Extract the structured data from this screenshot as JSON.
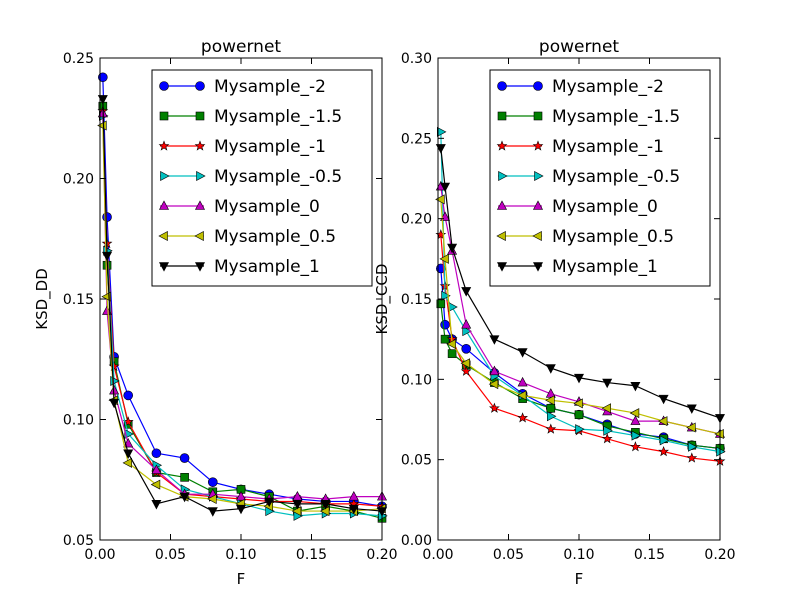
{
  "chart_data": [
    {
      "type": "line",
      "title": "powernet",
      "xlabel": "F",
      "ylabel": "KSD_DD",
      "xlim": [
        0.0,
        0.2
      ],
      "ylim": [
        0.05,
        0.25
      ],
      "xticks": [
        "0.00",
        "0.05",
        "0.10",
        "0.15",
        "0.20"
      ],
      "yticks": [
        "0.05",
        "0.10",
        "0.15",
        "0.20",
        "0.25"
      ],
      "grid": false,
      "legend_position": "top-right",
      "series": [
        {
          "name": "Mysample_-2",
          "color": "#0000ff",
          "marker": "circle",
          "x": [
            0.002,
            0.005,
            0.01,
            0.02,
            0.04,
            0.06,
            0.08,
            0.1,
            0.12,
            0.14,
            0.16,
            0.18,
            0.2
          ],
          "y": [
            0.242,
            0.184,
            0.126,
            0.11,
            0.086,
            0.084,
            0.074,
            0.071,
            0.069,
            0.067,
            0.066,
            0.066,
            0.064
          ]
        },
        {
          "name": "Mysample_-1.5",
          "color": "#008000",
          "marker": "square",
          "x": [
            0.002,
            0.005,
            0.01,
            0.02,
            0.04,
            0.06,
            0.08,
            0.1,
            0.12,
            0.14,
            0.16,
            0.18,
            0.2
          ],
          "y": [
            0.23,
            0.164,
            0.124,
            0.098,
            0.078,
            0.076,
            0.07,
            0.071,
            0.068,
            0.062,
            0.064,
            0.062,
            0.059
          ]
        },
        {
          "name": "Mysample_-1",
          "color": "#ff0000",
          "marker": "star",
          "x": [
            0.002,
            0.005,
            0.01,
            0.02,
            0.04,
            0.06,
            0.08,
            0.1,
            0.12,
            0.14,
            0.16,
            0.18,
            0.2
          ],
          "y": [
            0.228,
            0.173,
            0.122,
            0.099,
            0.078,
            0.069,
            0.068,
            0.067,
            0.066,
            0.066,
            0.065,
            0.065,
            0.064
          ]
        },
        {
          "name": "Mysample_-0.5",
          "color": "#00bfbf",
          "marker": "triangle-right",
          "x": [
            0.002,
            0.005,
            0.01,
            0.02,
            0.04,
            0.06,
            0.08,
            0.1,
            0.12,
            0.14,
            0.16,
            0.18,
            0.2
          ],
          "y": [
            0.226,
            0.17,
            0.116,
            0.094,
            0.081,
            0.071,
            0.068,
            0.065,
            0.062,
            0.06,
            0.061,
            0.061,
            0.06
          ]
        },
        {
          "name": "Mysample_0",
          "color": "#bf00bf",
          "marker": "triangle-up",
          "x": [
            0.002,
            0.005,
            0.01,
            0.02,
            0.04,
            0.06,
            0.08,
            0.1,
            0.12,
            0.14,
            0.16,
            0.18,
            0.2
          ],
          "y": [
            0.227,
            0.145,
            0.112,
            0.09,
            0.079,
            0.069,
            0.069,
            0.068,
            0.067,
            0.068,
            0.067,
            0.068,
            0.068
          ]
        },
        {
          "name": "Mysample_0.5",
          "color": "#bfbf00",
          "marker": "triangle-left",
          "x": [
            0.002,
            0.005,
            0.01,
            0.02,
            0.04,
            0.06,
            0.08,
            0.1,
            0.12,
            0.14,
            0.16,
            0.18,
            0.2
          ],
          "y": [
            0.222,
            0.151,
            0.108,
            0.082,
            0.073,
            0.068,
            0.067,
            0.065,
            0.064,
            0.062,
            0.062,
            0.062,
            0.063
          ]
        },
        {
          "name": "Mysample_1",
          "color": "#000000",
          "marker": "triangle-down",
          "x": [
            0.002,
            0.005,
            0.01,
            0.02,
            0.04,
            0.06,
            0.08,
            0.1,
            0.12,
            0.14,
            0.16,
            0.18,
            0.2
          ],
          "y": [
            0.233,
            0.168,
            0.107,
            0.086,
            0.065,
            0.068,
            0.062,
            0.063,
            0.066,
            0.065,
            0.065,
            0.063,
            0.062
          ]
        }
      ]
    },
    {
      "type": "line",
      "title": "powernet",
      "xlabel": "F",
      "ylabel": "KSD_CCD",
      "xlim": [
        0.0,
        0.2
      ],
      "ylim": [
        0.0,
        0.3
      ],
      "xticks": [
        "0.00",
        "0.05",
        "0.10",
        "0.15",
        "0.20"
      ],
      "yticks": [
        "0.00",
        "0.05",
        "0.10",
        "0.15",
        "0.20",
        "0.25",
        "0.30"
      ],
      "grid": false,
      "legend_position": "top-right",
      "series": [
        {
          "name": "Mysample_-2",
          "color": "#0000ff",
          "marker": "circle",
          "x": [
            0.002,
            0.005,
            0.01,
            0.02,
            0.04,
            0.06,
            0.08,
            0.1,
            0.12,
            0.14,
            0.16,
            0.18,
            0.2
          ],
          "y": [
            0.169,
            0.134,
            0.125,
            0.119,
            0.104,
            0.091,
            0.082,
            0.078,
            0.072,
            0.066,
            0.064,
            0.059,
            0.057
          ]
        },
        {
          "name": "Mysample_-1.5",
          "color": "#008000",
          "marker": "square",
          "x": [
            0.002,
            0.005,
            0.01,
            0.02,
            0.04,
            0.06,
            0.08,
            0.1,
            0.12,
            0.14,
            0.16,
            0.18,
            0.2
          ],
          "y": [
            0.147,
            0.125,
            0.116,
            0.109,
            0.098,
            0.088,
            0.082,
            0.078,
            0.071,
            0.067,
            0.063,
            0.059,
            0.057
          ]
        },
        {
          "name": "Mysample_-1",
          "color": "#ff0000",
          "marker": "star",
          "x": [
            0.002,
            0.005,
            0.01,
            0.02,
            0.04,
            0.06,
            0.08,
            0.1,
            0.12,
            0.14,
            0.16,
            0.18,
            0.2
          ],
          "y": [
            0.19,
            0.158,
            0.125,
            0.105,
            0.082,
            0.076,
            0.069,
            0.068,
            0.063,
            0.058,
            0.055,
            0.051,
            0.049
          ]
        },
        {
          "name": "Mysample_-0.5",
          "color": "#00bfbf",
          "marker": "triangle-right",
          "x": [
            0.002,
            0.005,
            0.01,
            0.02,
            0.04,
            0.06,
            0.08,
            0.1,
            0.12,
            0.14,
            0.16,
            0.18,
            0.2
          ],
          "y": [
            0.254,
            0.152,
            0.145,
            0.13,
            0.102,
            0.09,
            0.077,
            0.069,
            0.068,
            0.065,
            0.062,
            0.058,
            0.055
          ]
        },
        {
          "name": "Mysample_0",
          "color": "#bf00bf",
          "marker": "triangle-up",
          "x": [
            0.002,
            0.005,
            0.01,
            0.02,
            0.04,
            0.06,
            0.08,
            0.1,
            0.12,
            0.14,
            0.16,
            0.18,
            0.2
          ],
          "y": [
            0.22,
            0.201,
            0.18,
            0.134,
            0.105,
            0.098,
            0.091,
            0.086,
            0.08,
            0.074,
            0.074,
            0.07,
            0.066
          ]
        },
        {
          "name": "Mysample_0.5",
          "color": "#bfbf00",
          "marker": "triangle-left",
          "x": [
            0.002,
            0.005,
            0.01,
            0.02,
            0.04,
            0.06,
            0.08,
            0.1,
            0.12,
            0.14,
            0.16,
            0.18,
            0.2
          ],
          "y": [
            0.212,
            0.175,
            0.122,
            0.11,
            0.097,
            0.09,
            0.087,
            0.085,
            0.082,
            0.079,
            0.074,
            0.07,
            0.066
          ]
        },
        {
          "name": "Mysample_1",
          "color": "#000000",
          "marker": "triangle-down",
          "x": [
            0.002,
            0.005,
            0.01,
            0.02,
            0.04,
            0.06,
            0.08,
            0.1,
            0.12,
            0.14,
            0.16,
            0.18,
            0.2
          ],
          "y": [
            0.244,
            0.22,
            0.182,
            0.155,
            0.125,
            0.117,
            0.107,
            0.101,
            0.098,
            0.096,
            0.088,
            0.082,
            0.076
          ]
        }
      ]
    }
  ]
}
